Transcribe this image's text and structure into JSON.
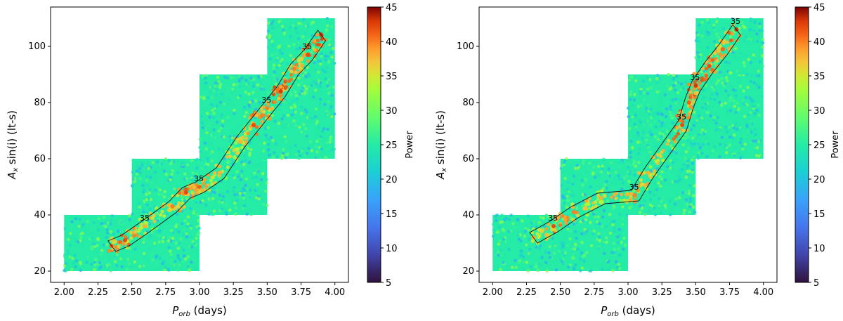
{
  "chart_data": [
    {
      "type": "scatter",
      "panel": "left",
      "xlabel": "P_orb (days)",
      "xlabel_main": "P",
      "xlabel_sub": "orb",
      "xlabel_rest": " (days)",
      "ylabel": "A_x sin(i) (lt-s)",
      "ylabel_main": "A",
      "ylabel_sub": "x",
      "ylabel_rest": " sin(i) (lt-s)",
      "xlim": [
        1.9,
        4.1
      ],
      "ylim": [
        16,
        114
      ],
      "x_ticks": [
        "2.00",
        "2.25",
        "2.50",
        "2.75",
        "3.00",
        "3.25",
        "3.50",
        "3.75",
        "4.00"
      ],
      "y_ticks": [
        "20",
        "40",
        "60",
        "80",
        "100"
      ],
      "search_regions": [
        {
          "x": [
            2.0,
            3.0
          ],
          "y": [
            20,
            40
          ]
        },
        {
          "x": [
            2.5,
            3.5
          ],
          "y": [
            40,
            60
          ]
        },
        {
          "x": [
            3.0,
            4.0
          ],
          "y": [
            60,
            90
          ]
        },
        {
          "x": [
            3.5,
            4.0
          ],
          "y": [
            90,
            110
          ]
        }
      ],
      "background_power": 25,
      "high_power_ridge": [
        {
          "x": 2.35,
          "y": 29,
          "power": 41
        },
        {
          "x": 2.45,
          "y": 31,
          "power": 42
        },
        {
          "x": 2.6,
          "y": 36,
          "power": 38
        },
        {
          "x": 2.8,
          "y": 43,
          "power": 40
        },
        {
          "x": 2.9,
          "y": 48,
          "power": 42
        },
        {
          "x": 3.0,
          "y": 50,
          "power": 41
        },
        {
          "x": 3.15,
          "y": 55,
          "power": 38
        },
        {
          "x": 3.3,
          "y": 66,
          "power": 38
        },
        {
          "x": 3.4,
          "y": 72,
          "power": 42
        },
        {
          "x": 3.5,
          "y": 78,
          "power": 40
        },
        {
          "x": 3.6,
          "y": 84,
          "power": 43
        },
        {
          "x": 3.7,
          "y": 92,
          "power": 40
        },
        {
          "x": 3.8,
          "y": 97,
          "power": 42
        },
        {
          "x": 3.9,
          "y": 104,
          "power": 43
        }
      ],
      "contour_level": 35,
      "contour_labels": [
        "35",
        "35",
        "35",
        "35"
      ]
    },
    {
      "type": "scatter",
      "panel": "right",
      "xlabel": "P_orb (days)",
      "xlabel_main": "P",
      "xlabel_sub": "orb",
      "xlabel_rest": " (days)",
      "ylabel": "A_x sin(i) (lt-s)",
      "ylabel_main": "A",
      "ylabel_sub": "x",
      "ylabel_rest": " sin(i) (lt-s)",
      "xlim": [
        1.9,
        4.1
      ],
      "ylim": [
        16,
        114
      ],
      "x_ticks": [
        "2.00",
        "2.25",
        "2.50",
        "2.75",
        "3.00",
        "3.25",
        "3.50",
        "3.75",
        "4.00"
      ],
      "y_ticks": [
        "20",
        "40",
        "60",
        "80",
        "100"
      ],
      "search_regions": [
        {
          "x": [
            2.0,
            3.0
          ],
          "y": [
            20,
            40
          ]
        },
        {
          "x": [
            2.5,
            3.5
          ],
          "y": [
            40,
            60
          ]
        },
        {
          "x": [
            3.0,
            4.0
          ],
          "y": [
            60,
            90
          ]
        },
        {
          "x": [
            3.5,
            4.0
          ],
          "y": [
            90,
            110
          ]
        }
      ],
      "background_power": 25,
      "high_power_ridge": [
        {
          "x": 2.3,
          "y": 32,
          "power": 38
        },
        {
          "x": 2.45,
          "y": 36,
          "power": 42
        },
        {
          "x": 2.6,
          "y": 41,
          "power": 40
        },
        {
          "x": 2.8,
          "y": 46,
          "power": 38
        },
        {
          "x": 3.05,
          "y": 47,
          "power": 40
        },
        {
          "x": 3.15,
          "y": 55,
          "power": 38
        },
        {
          "x": 3.4,
          "y": 72,
          "power": 42
        },
        {
          "x": 3.45,
          "y": 80,
          "power": 41
        },
        {
          "x": 3.5,
          "y": 86,
          "power": 43
        },
        {
          "x": 3.6,
          "y": 93,
          "power": 42
        },
        {
          "x": 3.7,
          "y": 99,
          "power": 41
        },
        {
          "x": 3.8,
          "y": 106,
          "power": 43
        }
      ],
      "contour_level": 35,
      "contour_labels": [
        "35",
        "35",
        "35",
        "35",
        "35"
      ]
    }
  ],
  "colorbar": {
    "label": "Power",
    "range": [
      5,
      45
    ],
    "ticks": [
      "5",
      "10",
      "15",
      "20",
      "25",
      "30",
      "35",
      "40",
      "45"
    ],
    "colormap": "turbo"
  }
}
